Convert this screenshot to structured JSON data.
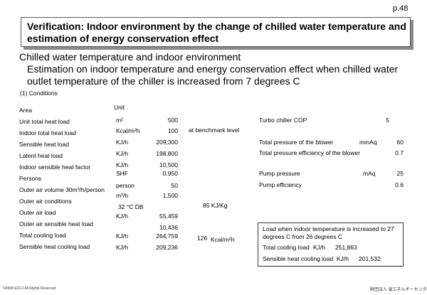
{
  "page_number": "p.48",
  "title": "Verification: Indoor environment by the change of chilled water temperature and estimation of energy conservation effect",
  "subtitle": "Chilled water temperature and indoor environment",
  "description": "Estimation on indoor temperature and energy conservation effect when chilled water outlet temperature of the chiller is increased from 7 degrees C",
  "conditions_heading": "(1) Conditions",
  "unit_header": "Unit",
  "left_rows": [
    {
      "label": "Area",
      "unit": "",
      "value": ""
    },
    {
      "label": "Unit total heat load",
      "unit": "m²",
      "value": "500"
    },
    {
      "label": "Indoor total heat load",
      "unit": "Kcal/m²h",
      "value": "100"
    },
    {
      "label": "Sensible heat load",
      "unit": "KJ/h",
      "value": "209,300"
    },
    {
      "label": "Latent heat load",
      "unit": "KJ/h",
      "value": "198,800"
    },
    {
      "label": "Indoor sensible heat factor",
      "unit": "KJ/h",
      "value": "10,500"
    },
    {
      "label": "Persons",
      "unit": "SHF",
      "value": "0.950"
    },
    {
      "label": "Outer air volume 30m³/h/person",
      "unit": "person",
      "value": "50"
    },
    {
      "label": "Outer air conditions",
      "unit": "m³/h",
      "value": "1,500"
    },
    {
      "label": "Outer air load",
      "unit": "32 °C DB",
      "value": ""
    },
    {
      "label": "Outer air sensible heat load",
      "unit": "KJ/h",
      "value": "55,459"
    },
    {
      "label": "Total cooling load",
      "unit": "",
      "value": "10,436"
    },
    {
      "label": "Sensible heat cooling load",
      "unit": "KJ/h",
      "value": "264,759"
    },
    {
      "label": "",
      "unit": "KJ/h",
      "value": "209,236"
    }
  ],
  "benchmark_note": "at benchmark level",
  "outer_air_enthalpy": "85  KJ/Kg",
  "load_per_area_value": "126",
  "load_per_area_unit": "Kcal/m²h",
  "right_rows": [
    {
      "label": "Turbo chiller COP",
      "unit": "",
      "value": "5"
    },
    {
      "label": "Total pressure of the blower",
      "unit": "mmAq",
      "value": "60"
    },
    {
      "label": "Total pressure efficiency of the blower",
      "unit": "",
      "value": "0.7"
    },
    {
      "label": "Pump pressure",
      "unit": "mAq",
      "value": "25"
    },
    {
      "label": "Pump efficiency",
      "unit": "",
      "value": "0.6"
    }
  ],
  "result_box": {
    "heading": "Load when indoor temperature is increased to 27 degrees C from 26 degrees C",
    "total_label": "Total cooling load",
    "total_unit": "KJ/h",
    "total_value": "251,863",
    "sensible_label": "Sensible heat cooling load",
    "sensible_unit": "KJ/h",
    "sensible_value": "201,532"
  },
  "footer_left": "©2008  ECCJ All Rights Reserved",
  "footer_right": "財団法人 省エネルギーセンター"
}
